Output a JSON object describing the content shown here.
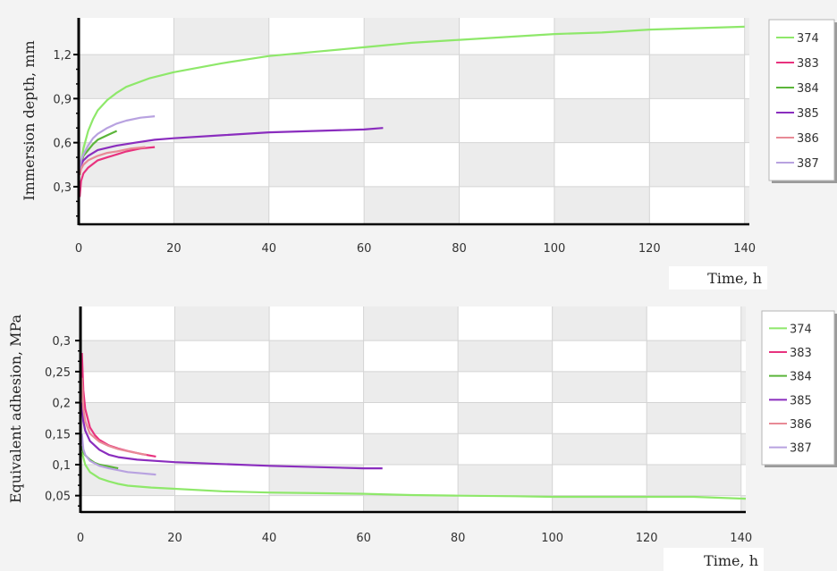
{
  "chart_data": [
    {
      "type": "line",
      "title": "",
      "xlabel": "Time, h",
      "ylabel": "Immersion depth, mm",
      "xlim": [
        0,
        141
      ],
      "ylim": [
        0.05,
        1.45
      ],
      "xticks": [
        0,
        20,
        40,
        60,
        80,
        100,
        120,
        140
      ],
      "yticks": [
        0.3,
        0.6,
        0.9,
        1.2
      ],
      "ytick_labels": [
        "0,3",
        "0,6",
        "0,9",
        "1,2"
      ],
      "grid": true,
      "legend_position": "right",
      "series": [
        {
          "name": "374",
          "color": "#8ee86a",
          "points": [
            [
              0.3,
              0.38
            ],
            [
              0.6,
              0.48
            ],
            [
              1,
              0.56
            ],
            [
              2,
              0.68
            ],
            [
              3,
              0.76
            ],
            [
              4,
              0.82
            ],
            [
              6,
              0.89
            ],
            [
              8,
              0.94
            ],
            [
              10,
              0.98
            ],
            [
              15,
              1.04
            ],
            [
              20,
              1.08
            ],
            [
              30,
              1.14
            ],
            [
              40,
              1.19
            ],
            [
              50,
              1.22
            ],
            [
              60,
              1.25
            ],
            [
              70,
              1.28
            ],
            [
              80,
              1.3
            ],
            [
              90,
              1.32
            ],
            [
              100,
              1.34
            ],
            [
              110,
              1.35
            ],
            [
              120,
              1.37
            ],
            [
              130,
              1.38
            ],
            [
              140,
              1.39
            ]
          ]
        },
        {
          "name": "383",
          "color": "#e8327e",
          "points": [
            [
              0.2,
              0.23
            ],
            [
              0.5,
              0.34
            ],
            [
              1,
              0.39
            ],
            [
              2,
              0.43
            ],
            [
              4,
              0.48
            ],
            [
              6,
              0.5
            ],
            [
              8,
              0.52
            ],
            [
              10,
              0.54
            ],
            [
              13,
              0.56
            ],
            [
              16,
              0.57
            ]
          ]
        },
        {
          "name": "384",
          "color": "#5bb53a",
          "points": [
            [
              0.2,
              0.4
            ],
            [
              0.5,
              0.46
            ],
            [
              1,
              0.51
            ],
            [
              2,
              0.55
            ],
            [
              3,
              0.59
            ],
            [
              4,
              0.62
            ],
            [
              6,
              0.65
            ],
            [
              8,
              0.68
            ]
          ]
        },
        {
          "name": "385",
          "color": "#8a2dbe",
          "points": [
            [
              0.2,
              0.4
            ],
            [
              0.5,
              0.45
            ],
            [
              1,
              0.48
            ],
            [
              2,
              0.51
            ],
            [
              4,
              0.55
            ],
            [
              8,
              0.58
            ],
            [
              12,
              0.6
            ],
            [
              16,
              0.62
            ],
            [
              20,
              0.63
            ],
            [
              30,
              0.65
            ],
            [
              40,
              0.67
            ],
            [
              50,
              0.68
            ],
            [
              60,
              0.69
            ],
            [
              64,
              0.7
            ]
          ]
        },
        {
          "name": "386",
          "color": "#e88a96",
          "points": [
            [
              0.2,
              0.38
            ],
            [
              0.5,
              0.42
            ],
            [
              1,
              0.45
            ],
            [
              2,
              0.48
            ],
            [
              4,
              0.51
            ],
            [
              6,
              0.53
            ],
            [
              8,
              0.54
            ],
            [
              11,
              0.56
            ],
            [
              14,
              0.57
            ]
          ]
        },
        {
          "name": "387",
          "color": "#b8a2e0",
          "points": [
            [
              0.2,
              0.42
            ],
            [
              0.5,
              0.48
            ],
            [
              1,
              0.52
            ],
            [
              2,
              0.58
            ],
            [
              3,
              0.63
            ],
            [
              4,
              0.66
            ],
            [
              6,
              0.7
            ],
            [
              8,
              0.73
            ],
            [
              10,
              0.75
            ],
            [
              13,
              0.77
            ],
            [
              16,
              0.78
            ]
          ]
        }
      ]
    },
    {
      "type": "line",
      "title": "",
      "xlabel": "Time, h",
      "ylabel": "Equivalent adhesion, MPa",
      "xlim": [
        0,
        141
      ],
      "ylim": [
        0.025,
        0.355
      ],
      "xticks": [
        0,
        20,
        40,
        60,
        80,
        100,
        120,
        140
      ],
      "yticks": [
        0.05,
        0.1,
        0.15,
        0.2,
        0.25,
        0.3
      ],
      "ytick_labels": [
        "0,05",
        "0,1",
        "0,15",
        "0,2",
        "0,25",
        "0,3"
      ],
      "grid": true,
      "legend_position": "right",
      "series": [
        {
          "name": "374",
          "color": "#8ee86a",
          "points": [
            [
              0.3,
              0.12
            ],
            [
              1,
              0.1
            ],
            [
              2,
              0.088
            ],
            [
              4,
              0.078
            ],
            [
              6,
              0.073
            ],
            [
              8,
              0.069
            ],
            [
              10,
              0.066
            ],
            [
              15,
              0.063
            ],
            [
              20,
              0.061
            ],
            [
              30,
              0.057
            ],
            [
              40,
              0.055
            ],
            [
              50,
              0.054
            ],
            [
              60,
              0.053
            ],
            [
              70,
              0.051
            ],
            [
              80,
              0.05
            ],
            [
              92,
              0.049
            ],
            [
              100,
              0.048
            ],
            [
              120,
              0.048
            ],
            [
              130,
              0.048
            ],
            [
              141,
              0.045
            ]
          ]
        },
        {
          "name": "383",
          "color": "#e8327e",
          "points": [
            [
              0.3,
              0.28
            ],
            [
              0.6,
              0.22
            ],
            [
              1,
              0.19
            ],
            [
              2,
              0.16
            ],
            [
              3,
              0.148
            ],
            [
              4,
              0.14
            ],
            [
              6,
              0.131
            ],
            [
              8,
              0.126
            ],
            [
              10,
              0.122
            ],
            [
              13,
              0.117
            ],
            [
              16,
              0.113
            ]
          ]
        },
        {
          "name": "384",
          "color": "#5bb53a",
          "points": [
            [
              0.3,
              0.13
            ],
            [
              0.6,
              0.12
            ],
            [
              1,
              0.115
            ],
            [
              2,
              0.108
            ],
            [
              3,
              0.103
            ],
            [
              4,
              0.1
            ],
            [
              6,
              0.097
            ],
            [
              8,
              0.094
            ]
          ]
        },
        {
          "name": "385",
          "color": "#8a2dbe",
          "points": [
            [
              0.3,
              0.2
            ],
            [
              0.6,
              0.17
            ],
            [
              1,
              0.155
            ],
            [
              2,
              0.138
            ],
            [
              4,
              0.124
            ],
            [
              6,
              0.116
            ],
            [
              8,
              0.112
            ],
            [
              12,
              0.108
            ],
            [
              16,
              0.106
            ],
            [
              20,
              0.104
            ],
            [
              30,
              0.101
            ],
            [
              40,
              0.098
            ],
            [
              50,
              0.096
            ],
            [
              60,
              0.094
            ],
            [
              64,
              0.094
            ]
          ]
        },
        {
          "name": "386",
          "color": "#e88a96",
          "points": [
            [
              0.3,
              0.24
            ],
            [
              0.6,
              0.19
            ],
            [
              1,
              0.17
            ],
            [
              2,
              0.15
            ],
            [
              4,
              0.137
            ],
            [
              6,
              0.13
            ],
            [
              8,
              0.125
            ],
            [
              11,
              0.12
            ],
            [
              14,
              0.116
            ]
          ]
        },
        {
          "name": "387",
          "color": "#b8a2e0",
          "points": [
            [
              0.3,
              0.15
            ],
            [
              0.6,
              0.125
            ],
            [
              1,
              0.116
            ],
            [
              2,
              0.106
            ],
            [
              4,
              0.098
            ],
            [
              6,
              0.094
            ],
            [
              8,
              0.091
            ],
            [
              10,
              0.088
            ],
            [
              13,
              0.086
            ],
            [
              16,
              0.084
            ]
          ]
        }
      ]
    }
  ]
}
